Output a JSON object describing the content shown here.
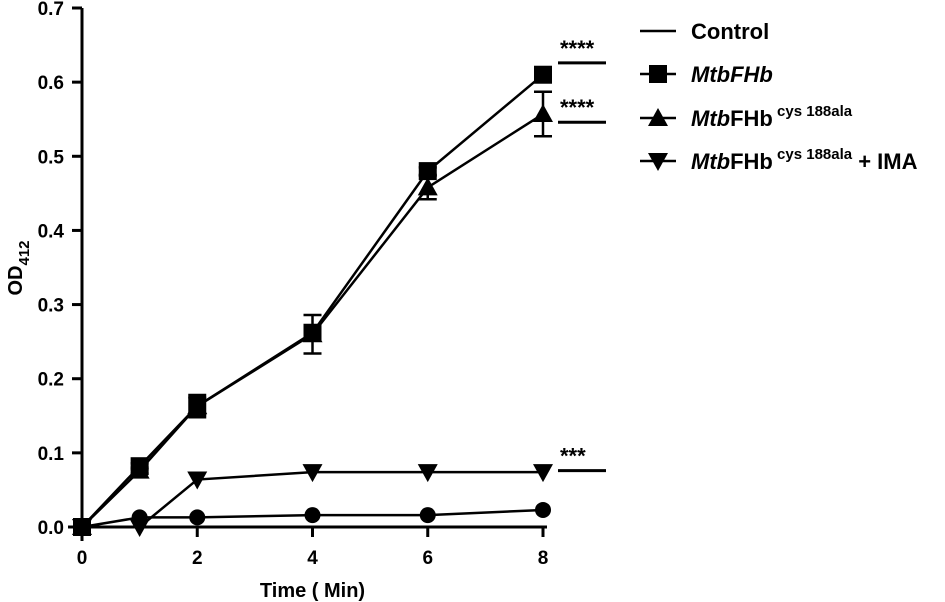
{
  "chart_data": {
    "type": "line",
    "xlabel": "Time ( Min)",
    "ylabel": {
      "main": "OD",
      "sub": "412"
    },
    "xlim": [
      0,
      8
    ],
    "ylim": [
      0,
      0.7
    ],
    "x_ticks": [
      "0",
      "2",
      "4",
      "6",
      "8"
    ],
    "y_ticks": [
      "0.0",
      "0.1",
      "0.2",
      "0.3",
      "0.4",
      "0.5",
      "0.6",
      "0.7"
    ],
    "grid": false,
    "legend_position": "top-right",
    "legend": [
      {
        "marker": "line",
        "parts": [
          {
            "text": "Control",
            "style": "normal"
          }
        ]
      },
      {
        "marker": "square",
        "parts": [
          {
            "text": "MtbFHb",
            "style": "italic"
          }
        ]
      },
      {
        "marker": "triangle-up",
        "parts": [
          {
            "text": "Mtb",
            "style": "italic"
          },
          {
            "text": "FHb",
            "style": "normal"
          },
          {
            "text": " cys 188ala",
            "style": "sup"
          }
        ]
      },
      {
        "marker": "triangle-down",
        "parts": [
          {
            "text": "Mtb",
            "style": "italic"
          },
          {
            "text": "FHb",
            "style": "normal"
          },
          {
            "text": " cys 188ala",
            "style": "sup"
          },
          {
            "text": " + IMA",
            "style": "normal"
          }
        ]
      }
    ],
    "series": [
      {
        "marker": "circle",
        "x": [
          0,
          1,
          2,
          4,
          6,
          8
        ],
        "y": [
          0.0,
          0.013,
          0.013,
          0.016,
          0.016,
          0.023
        ],
        "error": [
          0,
          0,
          0,
          0,
          0,
          0
        ]
      },
      {
        "marker": "square",
        "x": [
          0,
          1,
          2,
          4,
          6,
          8
        ],
        "y": [
          0.0,
          0.082,
          0.163,
          0.262,
          0.48,
          0.61
        ],
        "error": [
          0,
          0.004,
          0.012,
          0.0,
          0.005,
          0.004
        ]
      },
      {
        "marker": "triangle-up",
        "x": [
          0,
          1,
          2,
          4,
          6,
          8
        ],
        "y": [
          0.0,
          0.076,
          0.163,
          0.26,
          0.458,
          0.557
        ],
        "error": [
          0,
          0.004,
          0.015,
          0.026,
          0.016,
          0.03
        ]
      },
      {
        "marker": "triangle-down",
        "x": [
          0,
          1,
          2,
          4,
          6,
          8
        ],
        "y": [
          0.0,
          0.0,
          0.064,
          0.074,
          0.074,
          0.074
        ],
        "error": [
          0,
          0,
          0,
          0,
          0,
          0
        ]
      }
    ],
    "annotations": [
      {
        "text": "****",
        "y": 0.63
      },
      {
        "text": "****",
        "y": 0.55
      },
      {
        "text": "***",
        "y": 0.08
      }
    ]
  }
}
